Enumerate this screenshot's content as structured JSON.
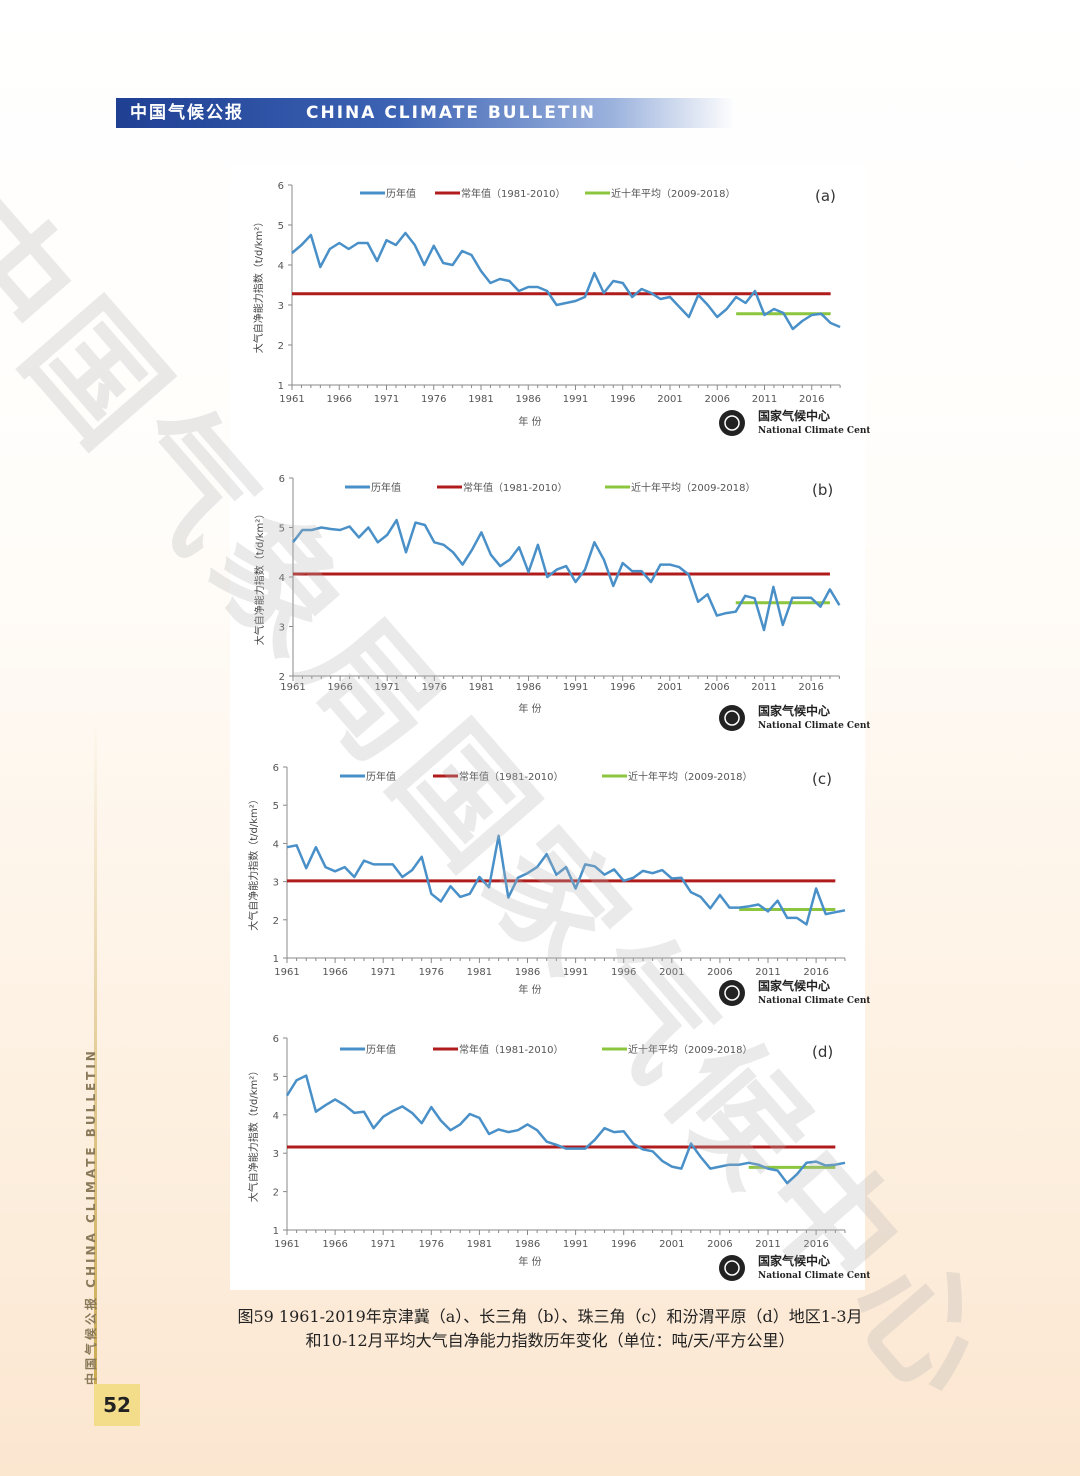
{
  "header": {
    "cn": "中国气候公报",
    "en": "CHINA CLIMATE BULLETIN"
  },
  "side": {
    "text": "中国气候公报  CHINA CLIMATE BULLETIN",
    "page": "52"
  },
  "watermark": "中国气象局国家气候中心",
  "caption": {
    "line1": "图59 1961-2019年京津冀（a）、长三角（b）、珠三角（c）和汾渭平原（d）地区1-3月",
    "line2": "和10-12月平均大气自净能力指数历年变化（单位：吨/天/平方公里）"
  },
  "logo": {
    "cn": "国家气候中心",
    "en": "National Climate Center"
  },
  "colors": {
    "series": "#4a90c8",
    "normal": "#b01c1c",
    "recent": "#8cc63f"
  },
  "chart_data": [
    {
      "type": "line",
      "panel_label": "(a)",
      "ylabel": "大气自净能力指数（t/d/km²）",
      "xlabel": "年 份",
      "ylim": [
        1,
        6
      ],
      "yticks": [
        1,
        2,
        3,
        4,
        5,
        6
      ],
      "xticks": [
        "1961",
        "1966",
        "1971",
        "1976",
        "1981",
        "1986",
        "1991",
        "1996",
        "2001",
        "2006",
        "2011",
        "2016"
      ],
      "legend": [
        "历年值",
        "常年值（1981-2010）",
        "近十年平均（2009-2018）"
      ],
      "x_start": 1961,
      "values": [
        4.3,
        4.5,
        4.75,
        3.95,
        4.4,
        4.55,
        4.4,
        4.55,
        4.55,
        4.1,
        4.62,
        4.5,
        4.8,
        4.5,
        4.0,
        4.48,
        4.05,
        4.0,
        4.35,
        4.25,
        3.85,
        3.55,
        3.65,
        3.6,
        3.35,
        3.45,
        3.45,
        3.35,
        3.0,
        3.05,
        3.1,
        3.2,
        3.8,
        3.3,
        3.6,
        3.55,
        3.2,
        3.4,
        3.3,
        3.15,
        3.2,
        2.95,
        2.7,
        3.25,
        3.0,
        2.7,
        2.9,
        3.2,
        3.05,
        3.35,
        2.75,
        2.9,
        2.8,
        2.4,
        2.6,
        2.75,
        2.78,
        2.55,
        2.45
      ],
      "normal": {
        "value": 3.28,
        "x_range": [
          1961,
          2018
        ]
      },
      "recent": {
        "value": 2.78,
        "x_range": [
          2008,
          2018
        ]
      }
    },
    {
      "type": "line",
      "panel_label": "(b)",
      "ylabel": "大气自净能力指数（t/d/km²）",
      "xlabel": "年 份",
      "ylim": [
        2,
        6
      ],
      "yticks": [
        2,
        3,
        4,
        5,
        6
      ],
      "xticks": [
        "1961",
        "1966",
        "1971",
        "1976",
        "1981",
        "1986",
        "1991",
        "1996",
        "2001",
        "2006",
        "2011",
        "2016"
      ],
      "legend": [
        "历年值",
        "常年值（1981-2010）",
        "近十年平均（2009-2018）"
      ],
      "x_start": 1961,
      "values": [
        4.7,
        4.95,
        4.95,
        5.0,
        4.97,
        4.95,
        5.02,
        4.8,
        5.0,
        4.7,
        4.85,
        5.15,
        4.5,
        5.1,
        5.05,
        4.7,
        4.65,
        4.5,
        4.25,
        4.55,
        4.9,
        4.45,
        4.22,
        4.35,
        4.6,
        4.1,
        4.65,
        4.0,
        4.15,
        4.22,
        3.9,
        4.15,
        4.7,
        4.35,
        3.82,
        4.28,
        4.12,
        4.12,
        3.9,
        4.25,
        4.25,
        4.2,
        4.05,
        3.5,
        3.65,
        3.22,
        3.27,
        3.3,
        3.62,
        3.57,
        2.93,
        3.8,
        3.03,
        3.58,
        3.58,
        3.58,
        3.4,
        3.75,
        3.43
      ],
      "normal": {
        "value": 4.06,
        "x_range": [
          1961,
          2018
        ]
      },
      "recent": {
        "value": 3.48,
        "x_range": [
          2008,
          2018
        ]
      }
    },
    {
      "type": "line",
      "panel_label": "(c)",
      "ylabel": "大气自净能力指数（t/d/km²）",
      "xlabel": "年 份",
      "ylim": [
        1,
        6
      ],
      "yticks": [
        1,
        2,
        3,
        4,
        5,
        6
      ],
      "xticks": [
        "1961",
        "1966",
        "1971",
        "1976",
        "1981",
        "1986",
        "1991",
        "1996",
        "2001",
        "2006",
        "2011",
        "2016"
      ],
      "legend": [
        "历年值",
        "常年值（1981-2010）",
        "近十年平均（2009-2018）"
      ],
      "x_start": 1961,
      "values": [
        3.9,
        3.95,
        3.35,
        3.9,
        3.38,
        3.27,
        3.38,
        3.12,
        3.55,
        3.45,
        3.45,
        3.45,
        3.12,
        3.3,
        3.65,
        2.68,
        2.48,
        2.88,
        2.6,
        2.68,
        3.12,
        2.85,
        4.2,
        2.58,
        3.1,
        3.22,
        3.38,
        3.72,
        3.18,
        3.38,
        2.82,
        3.45,
        3.4,
        3.18,
        3.32,
        3.02,
        3.1,
        3.28,
        3.22,
        3.3,
        3.08,
        3.1,
        2.72,
        2.6,
        2.3,
        2.65,
        2.32,
        2.32,
        2.35,
        2.4,
        2.22,
        2.5,
        2.05,
        2.05,
        1.88,
        2.82,
        2.15,
        2.2,
        2.25
      ],
      "normal": {
        "value": 3.02,
        "x_range": [
          1961,
          2018
        ]
      },
      "recent": {
        "value": 2.27,
        "x_range": [
          2008,
          2018
        ]
      }
    },
    {
      "type": "line",
      "panel_label": "(d)",
      "ylabel": "大气自净能力指数（t/d/km²）",
      "xlabel": "年 份",
      "ylim": [
        1,
        6
      ],
      "yticks": [
        1,
        2,
        3,
        4,
        5,
        6
      ],
      "xticks": [
        "1961",
        "1966",
        "1971",
        "1976",
        "1981",
        "1986",
        "1991",
        "1996",
        "2001",
        "2006",
        "2011",
        "2016"
      ],
      "legend": [
        "历年值",
        "常年值（1981-2010）",
        "近十年平均（2009-2018）"
      ],
      "x_start": 1961,
      "values": [
        4.5,
        4.9,
        5.02,
        4.08,
        4.25,
        4.4,
        4.25,
        4.05,
        4.08,
        3.65,
        3.95,
        4.1,
        4.22,
        4.05,
        3.78,
        4.2,
        3.85,
        3.6,
        3.75,
        4.02,
        3.92,
        3.5,
        3.62,
        3.55,
        3.6,
        3.75,
        3.6,
        3.3,
        3.22,
        3.12,
        3.12,
        3.12,
        3.35,
        3.65,
        3.55,
        3.57,
        3.25,
        3.1,
        3.05,
        2.8,
        2.65,
        2.6,
        3.25,
        2.9,
        2.6,
        2.65,
        2.7,
        2.7,
        2.75,
        2.7,
        2.6,
        2.55,
        2.22,
        2.45,
        2.75,
        2.78,
        2.68,
        2.7,
        2.75
      ],
      "normal": {
        "value": 3.16,
        "x_range": [
          1961,
          2018
        ]
      },
      "recent": {
        "value": 2.63,
        "x_range": [
          2009,
          2018
        ]
      }
    }
  ]
}
